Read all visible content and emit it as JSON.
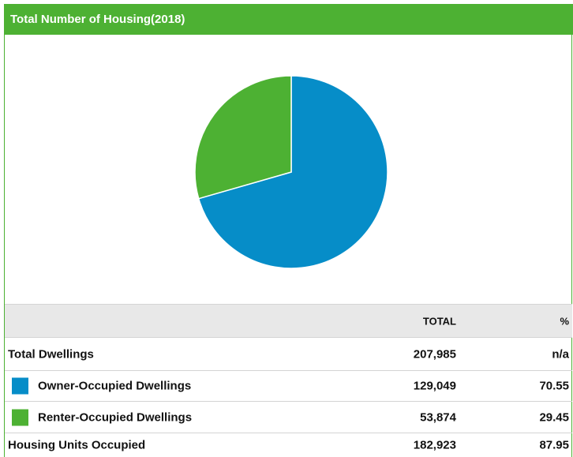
{
  "chart_data": {
    "type": "pie",
    "title": "Total Number of Housing(2018)",
    "categories": [
      "Owner-Occupied Dwellings",
      "Renter-Occupied Dwellings"
    ],
    "values": [
      70.55,
      29.45
    ],
    "colors": [
      "#068dc8",
      "#4db133"
    ]
  },
  "table": {
    "header": [
      "TOTAL",
      "%"
    ],
    "rows": [
      {
        "label": "Total Dwellings",
        "total": "207,985",
        "percent": "n/a"
      },
      {
        "total": "129,049"
      },
      {
        "total": "53,874"
      },
      {
        "label": "Housing Units Occupied",
        "total": "182,923",
        "percent": "87.95"
      }
    ]
  }
}
